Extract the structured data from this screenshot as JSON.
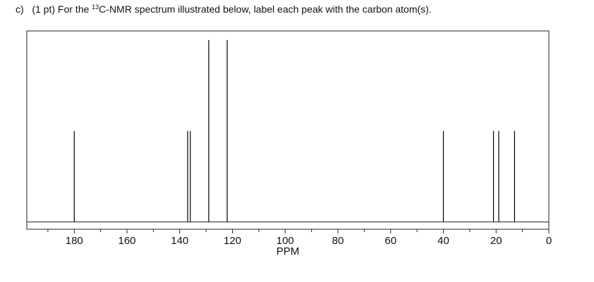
{
  "question": {
    "label": "c)",
    "text_before": "(1 pt) For the ",
    "superscript": "13",
    "text_after": "C-NMR spectrum illustrated below, label each peak with the carbon atom(s)."
  },
  "chart_data": {
    "type": "stem",
    "xlabel": "PPM",
    "x": [
      180,
      137,
      136,
      129,
      122,
      40,
      21,
      19,
      13
    ],
    "values": [
      0.5,
      0.5,
      0.5,
      1,
      1,
      0.5,
      0.5,
      0.5,
      0.5
    ],
    "color": "#000000",
    "xlim": [
      198,
      0
    ],
    "xticks": [
      180,
      160,
      140,
      120,
      100,
      80,
      60,
      40,
      20,
      0
    ],
    "xminorticks": [
      190,
      170,
      150,
      130,
      110,
      90,
      70,
      50,
      30,
      10
    ],
    "ylim": [
      -0.04,
      1.05
    ]
  }
}
